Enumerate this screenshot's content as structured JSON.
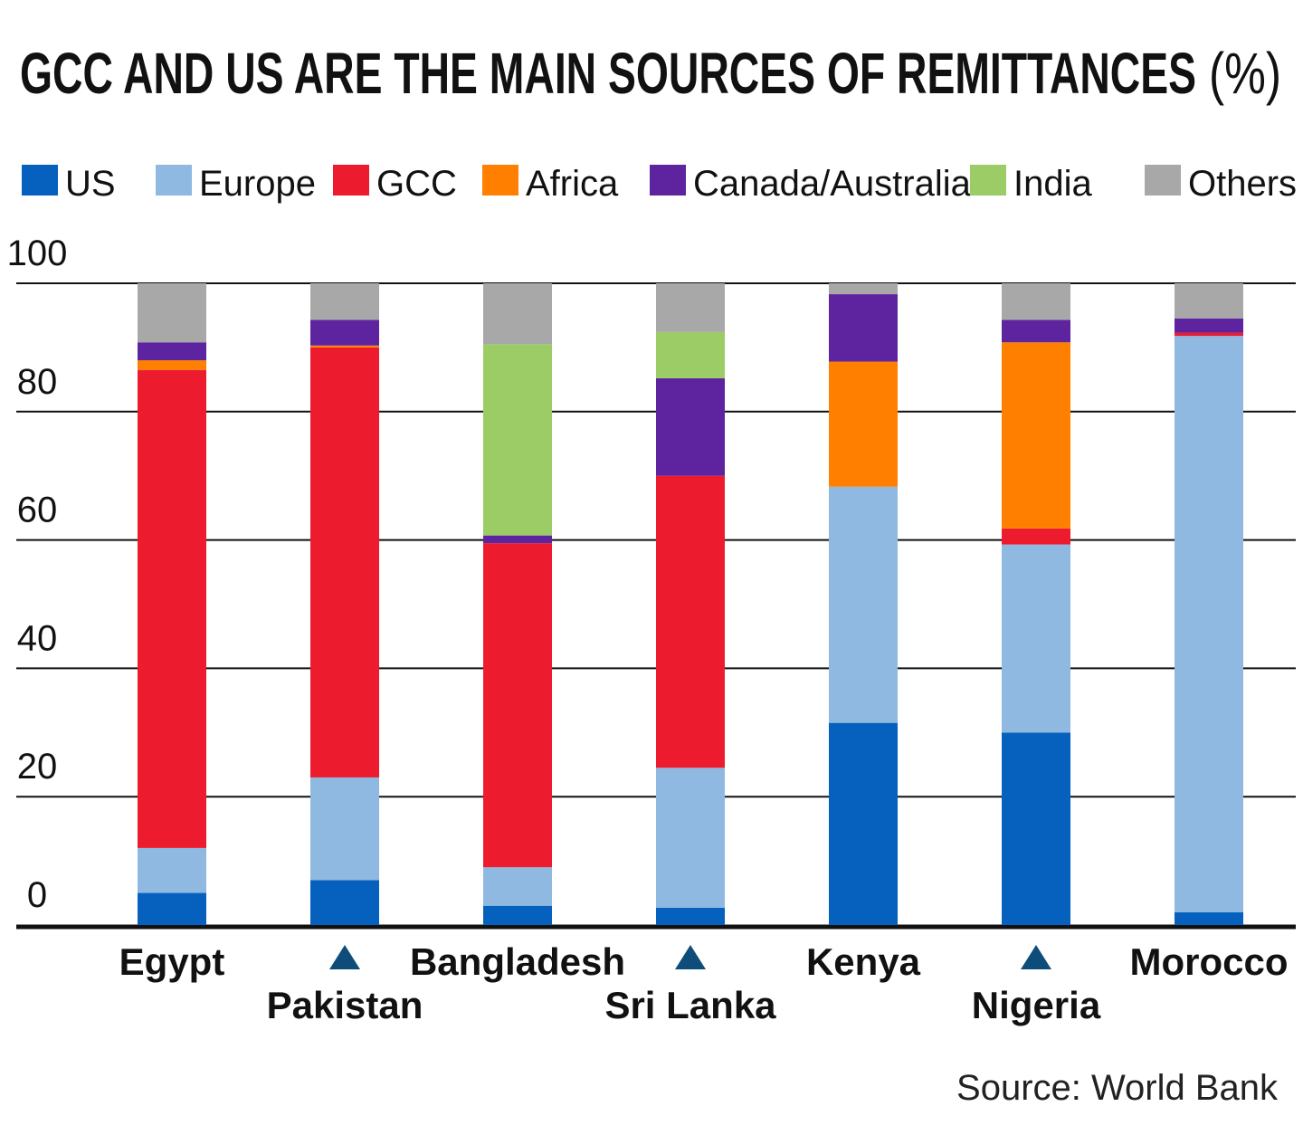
{
  "chart_data": {
    "type": "bar",
    "stacked": true,
    "title": "GCC AND US ARE THE MAIN SOURCES OF REMITTANCES",
    "title_unit": "(%)",
    "source": "Source: World Bank",
    "legend_placement": "top",
    "grid": true,
    "ylim": [
      0,
      100
    ],
    "yticks": [
      "0",
      "20",
      "40",
      "60",
      "80",
      "100"
    ],
    "categories": [
      "Egypt",
      "Pakistan",
      "Bangladesh",
      "Sri Lanka",
      "Kenya",
      "Nigeria",
      "Morocco"
    ],
    "category_markers": [
      false,
      true,
      false,
      true,
      false,
      true,
      false
    ],
    "series": [
      {
        "name": "US",
        "color": "#0561bd",
        "values": [
          5,
          7,
          3,
          2.7,
          31.5,
          30,
          2
        ]
      },
      {
        "name": "Europe",
        "color": "#8fb9e0",
        "values": [
          7,
          16,
          6,
          21.8,
          36.8,
          29.3,
          89.8
        ]
      },
      {
        "name": "GCC",
        "color": "#ec1c2e",
        "values": [
          74.5,
          67,
          50.5,
          45.5,
          0,
          2.5,
          0.5
        ]
      },
      {
        "name": "Africa",
        "color": "#ff8000",
        "values": [
          1.5,
          0.3,
          0,
          0,
          19.5,
          29,
          0
        ]
      },
      {
        "name": "Canada/Australia",
        "color": "#5e24a0",
        "values": [
          2.8,
          4,
          1.2,
          15.2,
          10.5,
          3.5,
          2.2
        ]
      },
      {
        "name": "India",
        "color": "#9bcc66",
        "values": [
          0,
          0,
          29.8,
          7.2,
          0,
          0,
          0
        ]
      },
      {
        "name": "Others",
        "color": "#a8a8a8",
        "values": [
          9.2,
          5.7,
          9.5,
          7.6,
          1.7,
          5.7,
          5.5
        ]
      }
    ]
  }
}
